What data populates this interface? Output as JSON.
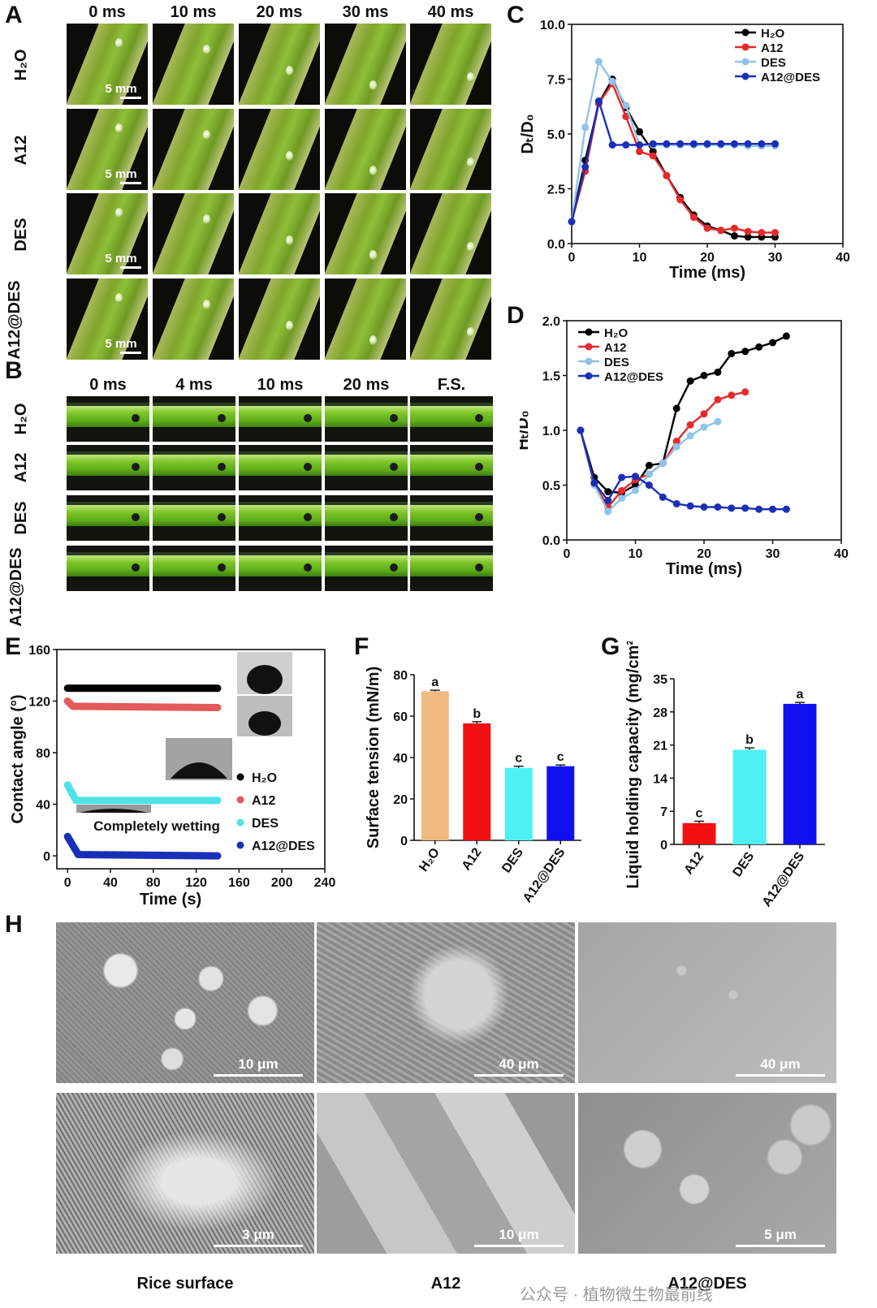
{
  "panel_letters": {
    "A": "A",
    "B": "B",
    "C": "C",
    "D": "D",
    "E": "E",
    "F": "F",
    "G": "G",
    "H": "H"
  },
  "panelA": {
    "columns": [
      "0 ms",
      "10 ms",
      "20 ms",
      "30 ms",
      "40 ms"
    ],
    "rows": [
      "H₂O",
      "A12",
      "DES",
      "A12@DES"
    ],
    "scale_label": "5 mm"
  },
  "panelB": {
    "columns": [
      "0 ms",
      "4 ms",
      "10 ms",
      "20 ms",
      "F.S."
    ],
    "rows": [
      "H₂O",
      "A12",
      "DES",
      "A12@DES"
    ]
  },
  "panelH": {
    "scales": [
      [
        "10 μm",
        "40 μm",
        "40 μm"
      ],
      [
        "3 μm",
        "10 μm",
        "5 μm"
      ]
    ],
    "captions": [
      "Rice surface",
      "A12",
      "A12@DES"
    ]
  },
  "panelE_labels": {
    "inset_text": "Completely wetting"
  },
  "watermark": "公众号 · 植物微生物最前线",
  "colors": {
    "H2O": "#000000",
    "A12": "#e8292b",
    "DES": "#8fc3ea",
    "A12@DES": "#1a2fb8",
    "E_DES": "#4fe3e6",
    "E_A12": "#e35a5a",
    "F_H2O": "#f0b982",
    "F_A12": "#f21111",
    "F_DES": "#4ff0f2",
    "F_A12DES": "#1111f0"
  },
  "chart_data": [
    {
      "id": "C",
      "type": "line",
      "xlabel": "Time (ms)",
      "ylabel": "Dₜ/D₀",
      "xlim": [
        0,
        40
      ],
      "ylim": [
        0,
        10
      ],
      "xticks": [
        "0",
        "10",
        "20",
        "30",
        "40"
      ],
      "yticks": [
        "0.0",
        "2.5",
        "5.0",
        "7.5",
        "10.0"
      ],
      "legend": "top-right",
      "series": [
        {
          "name": "H₂O",
          "x": [
            0,
            2,
            4,
            6,
            8,
            10,
            12,
            14,
            16,
            18,
            20,
            22,
            24,
            26,
            28,
            30
          ],
          "y": [
            1.0,
            3.8,
            6.4,
            7.5,
            6.2,
            5.1,
            4.2,
            3.1,
            2.1,
            1.3,
            0.8,
            0.6,
            0.35,
            0.3,
            0.3,
            0.3
          ]
        },
        {
          "name": "A12",
          "x": [
            0,
            2,
            4,
            6,
            8,
            10,
            12,
            14,
            16,
            18,
            20,
            22,
            24,
            26,
            28,
            30
          ],
          "y": [
            1.0,
            3.3,
            6.4,
            7.3,
            5.8,
            4.2,
            4.0,
            3.1,
            2.0,
            1.2,
            0.7,
            0.6,
            0.7,
            0.55,
            0.5,
            0.5
          ]
        },
        {
          "name": "DES",
          "x": [
            0,
            2,
            4,
            6,
            8,
            10,
            12,
            14,
            16,
            18,
            20,
            22,
            24,
            26,
            28,
            30
          ],
          "y": [
            1.0,
            5.3,
            8.3,
            7.4,
            6.3,
            4.5,
            4.5,
            4.5,
            4.5,
            4.5,
            4.5,
            4.5,
            4.5,
            4.45,
            4.45,
            4.45
          ]
        },
        {
          "name": "A12@DES",
          "x": [
            0,
            2,
            4,
            6,
            8,
            10,
            12,
            14,
            16,
            18,
            20,
            22,
            24,
            26,
            28,
            30
          ],
          "y": [
            1.0,
            3.5,
            6.5,
            4.5,
            4.5,
            4.5,
            4.55,
            4.55,
            4.55,
            4.55,
            4.55,
            4.55,
            4.55,
            4.55,
            4.55,
            4.55
          ]
        }
      ]
    },
    {
      "id": "D",
      "type": "line",
      "xlabel": "Time (ms)",
      "ylabel": "Hₜ/D₀",
      "xlim": [
        0,
        40
      ],
      "ylim": [
        0,
        2.0
      ],
      "xticks": [
        "0",
        "10",
        "20",
        "30",
        "40"
      ],
      "yticks": [
        "0.0",
        "0.5",
        "1.0",
        "1.5",
        "2.0"
      ],
      "legend": "top-left",
      "series": [
        {
          "name": "H₂O",
          "x": [
            2,
            4,
            6,
            8,
            10,
            12,
            14,
            16,
            18,
            20,
            22,
            24,
            26,
            28,
            30,
            32
          ],
          "y": [
            1.0,
            0.57,
            0.44,
            0.43,
            0.5,
            0.68,
            0.7,
            1.2,
            1.45,
            1.5,
            1.53,
            1.7,
            1.72,
            1.76,
            1.8,
            1.86
          ]
        },
        {
          "name": "A12",
          "x": [
            2,
            4,
            6,
            8,
            10,
            12,
            14,
            16,
            18,
            20,
            22,
            24,
            26
          ],
          "y": [
            1.0,
            0.52,
            0.3,
            0.45,
            0.55,
            0.6,
            0.7,
            0.9,
            1.05,
            1.15,
            1.28,
            1.32,
            1.35
          ]
        },
        {
          "name": "DES",
          "x": [
            2,
            4,
            6,
            8,
            10,
            12,
            14,
            16,
            18,
            20,
            22
          ],
          "y": [
            1.0,
            0.5,
            0.26,
            0.38,
            0.45,
            0.6,
            0.7,
            0.85,
            0.95,
            1.03,
            1.08
          ]
        },
        {
          "name": "A12@DES",
          "x": [
            2,
            4,
            6,
            8,
            10,
            12,
            14,
            16,
            18,
            20,
            22,
            24,
            26,
            28,
            30,
            32
          ],
          "y": [
            1.0,
            0.52,
            0.36,
            0.57,
            0.58,
            0.5,
            0.39,
            0.33,
            0.31,
            0.3,
            0.3,
            0.29,
            0.29,
            0.28,
            0.28,
            0.28
          ]
        }
      ]
    },
    {
      "id": "E",
      "type": "scatter",
      "xlabel": "Time (s)",
      "ylabel": "Contact angle (°)",
      "xlim": [
        -10,
        240
      ],
      "ylim": [
        -10,
        160
      ],
      "xticks": [
        "0",
        "40",
        "80",
        "120",
        "160",
        "200",
        "240"
      ],
      "yticks": [
        "0",
        "40",
        "80",
        "120",
        "160"
      ],
      "legend": "right",
      "series": [
        {
          "name": "H₂O",
          "x": [
            0,
            140
          ],
          "y": [
            130,
            130
          ]
        },
        {
          "name": "A12",
          "x": [
            0,
            5,
            140
          ],
          "y": [
            120,
            116,
            115
          ]
        },
        {
          "name": "DES",
          "x": [
            0,
            8,
            140
          ],
          "y": [
            55,
            43,
            43
          ]
        },
        {
          "name": "A12@DES",
          "x": [
            0,
            10,
            140
          ],
          "y": [
            15,
            1,
            0
          ]
        }
      ]
    },
    {
      "id": "F",
      "type": "bar",
      "ylabel": "Surface tension (mN/m)",
      "ylim": [
        0,
        80
      ],
      "yticks": [
        "0",
        "20",
        "40",
        "60",
        "80"
      ],
      "categories": [
        "H₂O",
        "A12",
        "DES",
        "A12@DES"
      ],
      "values": [
        72.0,
        56.5,
        35.0,
        35.8
      ],
      "errors": [
        0.5,
        0.8,
        0.8,
        0.6
      ],
      "letters": [
        "a",
        "b",
        "c",
        "c"
      ]
    },
    {
      "id": "G",
      "type": "bar",
      "ylabel": "Liquid holding capacity (mg/cm²)",
      "ylim": [
        0,
        35
      ],
      "yticks": [
        "0",
        "7",
        "14",
        "21",
        "28",
        "35"
      ],
      "categories": [
        "A12",
        "DES",
        "A12@DES"
      ],
      "values": [
        4.5,
        20.0,
        29.7
      ],
      "errors": [
        0.4,
        0.4,
        0.3
      ],
      "letters": [
        "c",
        "b",
        "a"
      ]
    }
  ]
}
